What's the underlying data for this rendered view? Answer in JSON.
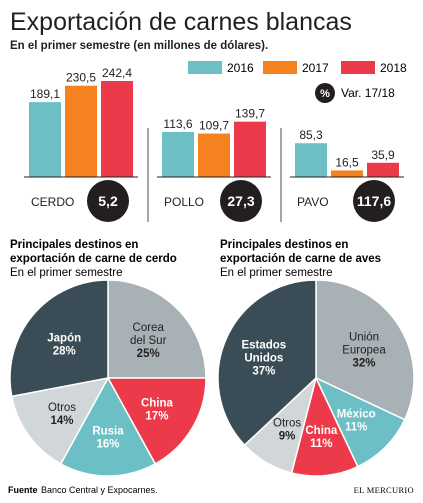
{
  "header": {
    "title": "Exportación de carnes blancas",
    "subtitle": "En el primer semestre (en millones de dólares)."
  },
  "legend": {
    "years": [
      "2016",
      "2017",
      "2018"
    ],
    "var_symbol": "%",
    "var_label": "Var. 17/18"
  },
  "colors": {
    "y2016": "#6cbfc5",
    "y2017": "#f5821f",
    "y2018": "#ec3a4a",
    "dark": "#3a4c55",
    "gray": "#a8b1b5",
    "lightgray": "#d1d6d9",
    "badge": "#231f20"
  },
  "chart_data": [
    {
      "type": "bar",
      "title": "Exportación de carnes blancas",
      "subtitle": "En el primer semestre (en millones de dólares).",
      "categories": [
        "CERDO",
        "POLLO",
        "PAVO"
      ],
      "series": [
        {
          "name": "2016",
          "values": [
            189.1,
            113.6,
            85.3
          ],
          "labels": [
            "189,1",
            "113,6",
            "85,3"
          ]
        },
        {
          "name": "2017",
          "values": [
            230.5,
            109.7,
            16.5
          ],
          "labels": [
            "230,5",
            "109,7",
            "16,5"
          ]
        },
        {
          "name": "2018",
          "values": [
            242.4,
            139.7,
            35.9
          ],
          "labels": [
            "242,4",
            "139,7",
            "35,9"
          ]
        }
      ],
      "variation": {
        "label": "Var. 17/18",
        "values": [
          "5,2",
          "27,3",
          "117,6"
        ]
      },
      "ylim": [
        0,
        250
      ],
      "legend_position": "top-right"
    },
    {
      "type": "pie",
      "title": "Principales destinos en exportación de carne de cerdo",
      "subtitle": "En el primer semestre",
      "slices": [
        {
          "label": [
            "Corea",
            "del Sur"
          ],
          "pct": "25%",
          "value": 25,
          "color": "gray"
        },
        {
          "label": [
            "China"
          ],
          "pct": "17%",
          "value": 17,
          "color": "y2018"
        },
        {
          "label": [
            "Rusia"
          ],
          "pct": "16%",
          "value": 16,
          "color": "y2016"
        },
        {
          "label": [
            "Otros"
          ],
          "pct": "14%",
          "value": 14,
          "color": "lightgray"
        },
        {
          "label": [
            "Japón"
          ],
          "pct": "28%",
          "value": 28,
          "color": "dark"
        }
      ]
    },
    {
      "type": "pie",
      "title": "Principales destinos en exportación de carne de aves",
      "subtitle": "En el primer semestre",
      "slices": [
        {
          "label": [
            "Unión",
            "Europea"
          ],
          "pct": "32%",
          "value": 32,
          "color": "gray"
        },
        {
          "label": [
            "México"
          ],
          "pct": "11%",
          "value": 11,
          "color": "y2016"
        },
        {
          "label": [
            "China"
          ],
          "pct": "11%",
          "value": 11,
          "color": "y2018"
        },
        {
          "label": [
            "Otros"
          ],
          "pct": "9%",
          "value": 9,
          "color": "lightgray"
        },
        {
          "label": [
            "Estados",
            "Unidos"
          ],
          "pct": "37%",
          "value": 37,
          "color": "dark"
        }
      ]
    }
  ],
  "footer": {
    "source_bold": "Fuente",
    "source_text": "Banco Central y Expocarnes.",
    "brand": "EL MERCURIO"
  }
}
